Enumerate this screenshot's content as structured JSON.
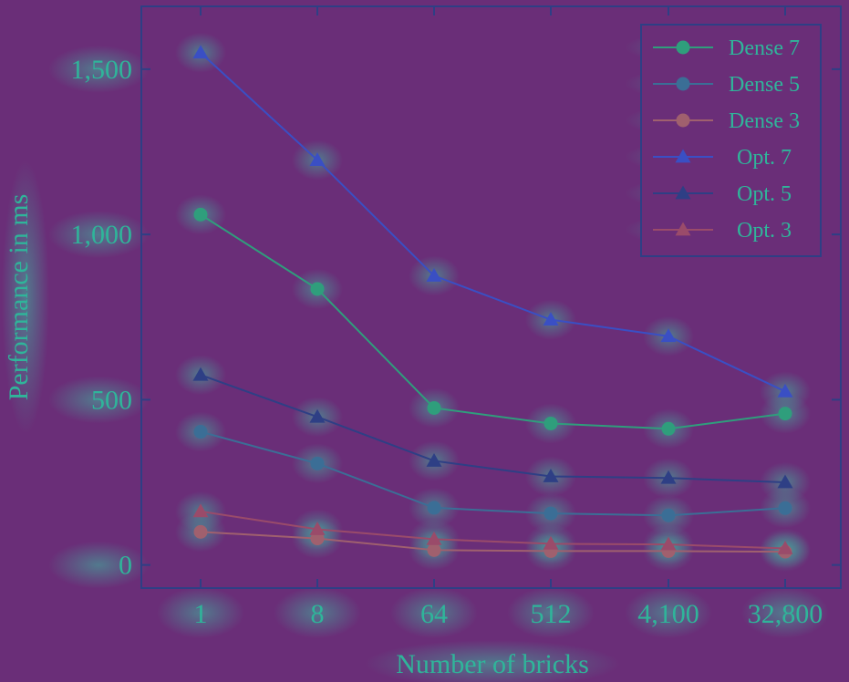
{
  "chart_data": {
    "type": "line",
    "title": "",
    "xlabel": "Number of bricks",
    "ylabel": "Performance in ms",
    "categories": [
      "1",
      "8",
      "64",
      "512",
      "4,100",
      "32,800"
    ],
    "yticks": [
      {
        "value": 0,
        "label": "0"
      },
      {
        "value": 500,
        "label": "500"
      },
      {
        "value": 1000,
        "label": "1,000"
      },
      {
        "value": 1500,
        "label": "1,500"
      }
    ],
    "ylim": [
      -70,
      1690
    ],
    "grid": false,
    "legend_position": "top-right",
    "series": [
      {
        "name": "Dense 7",
        "marker": "circle",
        "color": "#2f9e7c",
        "values": [
          1060,
          835,
          475,
          428,
          412,
          458
        ]
      },
      {
        "name": "Dense 5",
        "marker": "circle",
        "color": "#3b6e96",
        "values": [
          403,
          307,
          173,
          156,
          150,
          172
        ]
      },
      {
        "name": "Dense 3",
        "marker": "circle",
        "color": "#a0606e",
        "values": [
          100,
          80,
          45,
          42,
          42,
          40
        ]
      },
      {
        "name": "Opt. 7",
        "marker": "triangle",
        "color": "#3a4fc4",
        "values": [
          1550,
          1225,
          875,
          742,
          692,
          525
        ]
      },
      {
        "name": "Opt. 5",
        "marker": "triangle",
        "color": "#2e3f85",
        "values": [
          575,
          448,
          315,
          268,
          263,
          250
        ]
      },
      {
        "name": "Opt. 3",
        "marker": "triangle",
        "color": "#9a4b6a",
        "values": [
          162,
          108,
          78,
          64,
          62,
          50
        ]
      }
    ]
  }
}
